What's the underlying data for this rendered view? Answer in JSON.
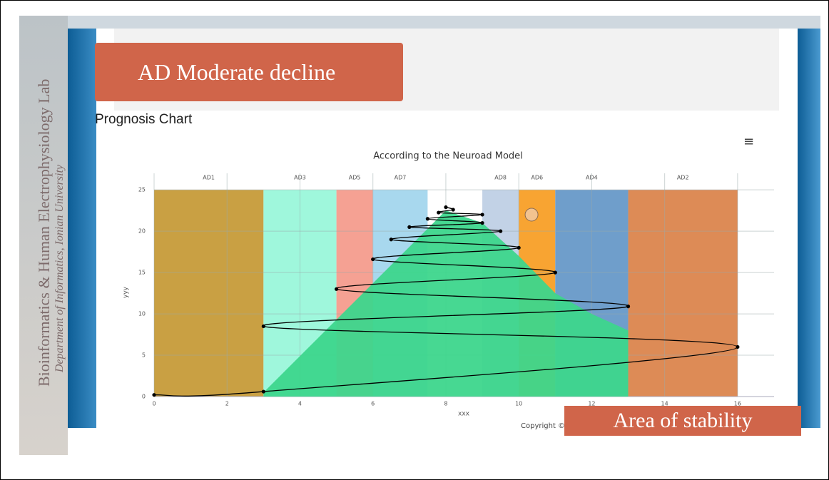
{
  "slide": {
    "lab": "Bioinformatics & Human Electrophysiology Lab",
    "department": "Department of Informatics, Ionian University",
    "stage": "AD Moderate decline",
    "heading": "Prognosis Chart",
    "copyright": "Copyright ©",
    "caption": "Area of stability"
  },
  "chart_data": {
    "type": "line",
    "title": "According to the Neuroad Model",
    "x_label": "xxx",
    "y_label": "yyy",
    "xlim": [
      0,
      17
    ],
    "ylim": [
      0,
      27
    ],
    "xticks": [
      0,
      2,
      4,
      6,
      8,
      10,
      12,
      14,
      16
    ],
    "yticks": [
      0,
      5,
      10,
      15,
      20,
      25
    ],
    "grid": true,
    "bands": [
      {
        "label": "AD1",
        "x0": 0,
        "x1": 3,
        "top": 25,
        "color": "#c9a043"
      },
      {
        "label": "AD3",
        "x0": 3,
        "x1": 5,
        "top": 25,
        "color": "#9ff7dc"
      },
      {
        "label": "AD5",
        "x0": 5,
        "x1": 6,
        "top": 25,
        "color": "#f5a193"
      },
      {
        "label": "AD7",
        "x0": 6,
        "x1": 7.5,
        "top": 25,
        "color": "#a8d8ee"
      },
      {
        "label": "AD8",
        "x0": 9,
        "x1": 10,
        "top": 25,
        "color": "#c2d2e6"
      },
      {
        "label": "AD6",
        "x0": 10,
        "x1": 11,
        "top": 25,
        "color": "#f8a432"
      },
      {
        "label": "AD4",
        "x0": 11,
        "x1": 13,
        "top": 25,
        "color": "#6f9ecb"
      },
      {
        "label": "AD2",
        "x0": 13,
        "x1": 16,
        "top": 25,
        "color": "#dd8b56"
      }
    ],
    "area": {
      "color": "#3dd68c",
      "x": [
        3,
        8,
        9,
        10,
        11,
        12,
        13
      ],
      "values": [
        0.5,
        22.5,
        21,
        17,
        12.5,
        10,
        8
      ]
    },
    "series": [
      {
        "color": "#000000",
        "x": [
          0,
          3,
          16,
          3,
          13,
          5,
          11,
          6,
          10,
          6.5,
          9.5,
          7,
          9,
          7.5,
          9,
          7.8,
          8.2,
          8
        ],
        "values": [
          0.2,
          0.6,
          6,
          8.5,
          10.9,
          13,
          15,
          16.6,
          18,
          19,
          20,
          20.5,
          21,
          21.5,
          22,
          22.25,
          22.6,
          22.9
        ]
      }
    ],
    "marker": {
      "x": 10.35,
      "y": 22,
      "color": "#f2c390"
    }
  }
}
